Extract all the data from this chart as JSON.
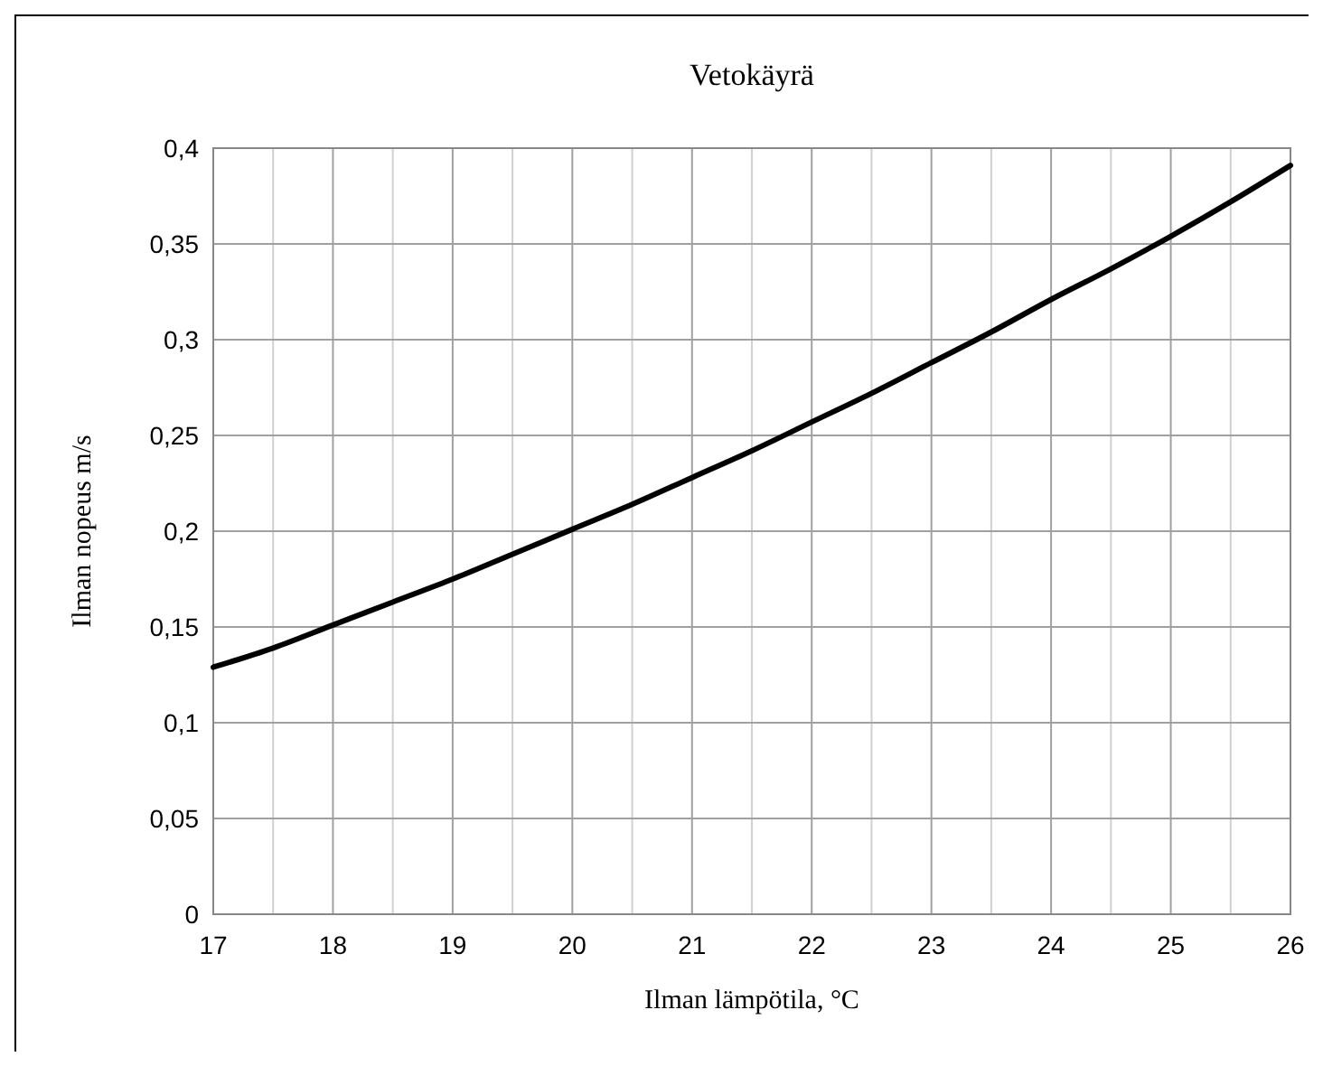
{
  "chart_data": {
    "type": "line",
    "title": "Vetokäyrä",
    "xlabel": "Ilman lämpötila, °C",
    "ylabel": "Ilman nopeus m/s",
    "x": [
      17,
      17.5,
      18,
      18.5,
      19,
      19.5,
      20,
      20.5,
      21,
      21.5,
      22,
      22.5,
      23,
      23.5,
      24,
      24.5,
      25,
      25.5,
      26
    ],
    "series": [
      {
        "color": "#000000",
        "values": [
          0.129,
          0.139,
          0.151,
          0.163,
          0.175,
          0.188,
          0.201,
          0.214,
          0.228,
          0.242,
          0.257,
          0.272,
          0.288,
          0.304,
          0.321,
          0.337,
          0.354,
          0.372,
          0.391
        ]
      }
    ],
    "xlim": [
      17,
      26
    ],
    "xticks": [
      17,
      {
        "value": 17.5,
        "label": null
      },
      18,
      {
        "value": 18.5,
        "label": null
      },
      19,
      {
        "value": 19.5,
        "label": null
      },
      20,
      {
        "value": 20.5,
        "label": null
      },
      21,
      {
        "value": 21.5,
        "label": null
      },
      22,
      {
        "value": 22.5,
        "label": null
      },
      23,
      {
        "value": 23.5,
        "label": null
      },
      24,
      {
        "value": 24.5,
        "label": null
      },
      25,
      {
        "value": 25.5,
        "label": null
      },
      26
    ],
    "ylim": [
      0,
      0.4
    ],
    "yticks": [
      0,
      {
        "value": 0.05,
        "label": "0,05"
      },
      {
        "value": 0.1,
        "label": "0,1"
      },
      {
        "value": 0.15,
        "label": "0,15"
      },
      {
        "value": 0.2,
        "label": "0,2"
      },
      {
        "value": 0.25,
        "label": "0,25"
      },
      {
        "value": 0.3,
        "label": "0,3"
      },
      {
        "value": 0.35,
        "label": "0,35"
      },
      {
        "value": 0.4,
        "label": "0,4"
      }
    ],
    "grid": true,
    "line_style": "solid",
    "marker": "none"
  }
}
